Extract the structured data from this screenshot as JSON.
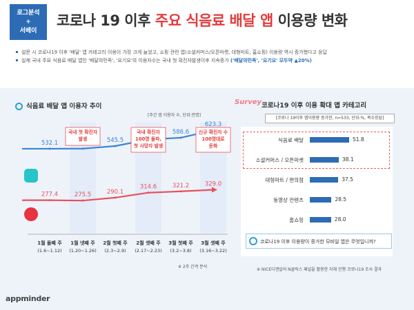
{
  "badge": {
    "line1": "로그분석",
    "line2": "+",
    "line3": "서베이"
  },
  "title": {
    "part1": "코로나 19 이후 ",
    "highlight": "주요 식음료 배달 앱",
    "part2": " 이용량 변화"
  },
  "bullets": [
    {
      "text": "설문 시 코로나19 이후 '배달' 앱 카테고리 이용이 가장 크게 늘었고, 쇼핑 관련 앱(소셜커머스/오픈마켓, 대형마트, 홈쇼핑) 이용량 역시 증가했다고 응답"
    },
    {
      "text_a": "실제 국내 주요 식음료 배달 앱인 '배달의민족', '요기요'의 이용자수는 국내 첫 확진자발생이후 지속증가 ",
      "text_b": "('배달의민족', '요기요' 모두약 ▲20%)"
    }
  ],
  "left_section_title": "식음료 배달 앱 이용자 추이",
  "right_section_prefix": "Survey",
  "right_section_title": "코로나19 이후 이용 확대 앱 카테고리",
  "left_unit": "[주간 앱 이용자 수, 단위:만명]",
  "right_unit": "[코로나 19이후 앱이용량 증가한, n=533, 단위:%, 복수응답]",
  "colors": {
    "blue": "#3b82d6",
    "red": "#e8505b",
    "bar": "#2d6cb5",
    "accent": "#27a1d7"
  },
  "chart_data": [
    {
      "type": "line",
      "title": "식음료 배달 앱 이용자 추이",
      "categories": [
        "1월 둘째 주",
        "1월 넷째 주",
        "2월 첫째 주",
        "2월 셋째 주",
        "3월 첫째 주",
        "3월 셋째 주"
      ],
      "category_dates": [
        "(1.6~1.12)",
        "(1.20~1.26)",
        "(2.3~2.9)",
        "(2.17~2.23)",
        "(3.2~3.8)",
        "(3.16~3.22)"
      ],
      "series": [
        {
          "name": "배달의민족",
          "values": [
            532.1,
            532.7,
            545.5,
            577.8,
            586.6,
            623.3
          ],
          "color": "#3b82d6"
        },
        {
          "name": "요기요",
          "values": [
            277.4,
            275.5,
            290.1,
            314.6,
            321.2,
            329.0
          ],
          "color": "#e8505b"
        }
      ],
      "annotations": [
        {
          "category_index": 1,
          "text": [
            "국내 첫 확진자",
            "발생"
          ]
        },
        {
          "category_index": 3,
          "text": [
            "국내 확진자",
            "100명 돌파,",
            "첫 사망자 발생"
          ]
        },
        {
          "category_index": 5,
          "text": [
            "신규 확진자 수",
            "100명대로",
            "둔화"
          ]
        }
      ],
      "ylim": [
        0,
        750
      ],
      "footnote": "※ 2주 간격 분석"
    },
    {
      "type": "bar",
      "title": "코로나19 이후 이용 확대 앱 카테고리",
      "categories": [
        "식음료 배달",
        "소셜커머스 / 오픈마켓",
        "대형마트 / 편의점",
        "동영상 컨텐츠",
        "홈쇼핑"
      ],
      "values": [
        51.8,
        38.1,
        37.5,
        28.5,
        28.0
      ],
      "xlim": [
        0,
        100
      ]
    }
  ],
  "question": "코로나19 이후 이용량이 증가한 모바일 앱은 무엇입니까?",
  "source_note": "※ NICE디앤알의 N클릭스 패널을 활용한 자체 진행 코로나19 조사 결과",
  "logo": "appminder"
}
